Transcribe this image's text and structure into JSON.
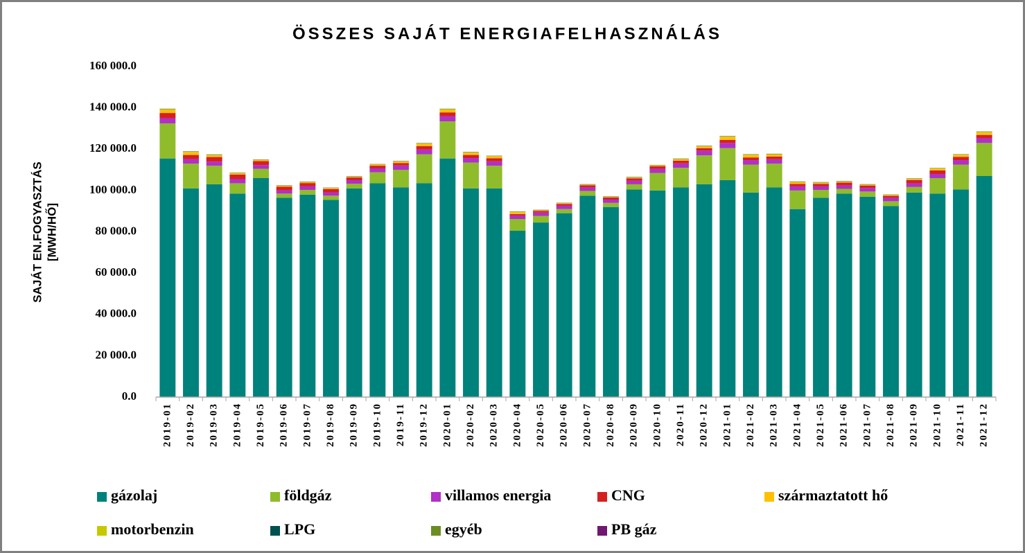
{
  "chart_data": {
    "type": "stacked_bar",
    "title": "ÖSSZES SAJÁT ENERGIAFELHASZNÁLÁS",
    "y_label": [
      "SAJÁT EN.FOGYASZTÁS",
      "[MWH/HŐ]"
    ],
    "categories": [
      "2019-01",
      "2019-02",
      "2019-03",
      "2019-04",
      "2019-05",
      "2019-06",
      "2019-07",
      "2019-08",
      "2019-09",
      "2019-10",
      "2019-11",
      "2019-12",
      "2020-01",
      "2020-02",
      "2020-03",
      "2020-04",
      "2020-05",
      "2020-06",
      "2020-07",
      "2020-08",
      "2020-09",
      "2020-10",
      "2020-11",
      "2020-12",
      "2021-01",
      "2021-02",
      "2021-03",
      "2021-04",
      "2021-05",
      "2021-06",
      "2021-07",
      "2021-08",
      "2021-09",
      "2021-10",
      "2021-11",
      "2021-12"
    ],
    "series": [
      {
        "name": "gázolaj",
        "color": "#00827c",
        "values": [
          115500,
          101000,
          103000,
          98500,
          106000,
          96500,
          98000,
          95500,
          101000,
          103500,
          101500,
          103500,
          115500,
          101000,
          101000,
          80500,
          84500,
          89000,
          97500,
          92000,
          100500,
          100000,
          101500,
          103000,
          105000,
          99000,
          101500,
          91000,
          96500,
          98500,
          97000,
          92500,
          99000,
          98500,
          100500,
          107000
        ]
      },
      {
        "name": "földgáz",
        "color": "#8fbc2b",
        "values": [
          17000,
          12000,
          9000,
          5000,
          4500,
          2000,
          2300,
          2000,
          2300,
          5300,
          8500,
          14000,
          18000,
          12500,
          11000,
          5700,
          3200,
          2000,
          2300,
          2000,
          2500,
          8500,
          9500,
          14000,
          15500,
          13500,
          11500,
          9000,
          3800,
          2300,
          2500,
          2300,
          2700,
          7500,
          12000,
          16000
        ]
      },
      {
        "name": "villamos energia",
        "color": "#b030c8",
        "values": [
          2500,
          2200,
          2000,
          2000,
          1800,
          1600,
          1700,
          1600,
          1700,
          1900,
          2100,
          2300,
          2500,
          2200,
          2100,
          1700,
          1600,
          1600,
          1700,
          1600,
          1700,
          2000,
          2100,
          2300,
          2500,
          2200,
          2100,
          2000,
          1700,
          1700,
          1700,
          1600,
          1800,
          2000,
          2200,
          2300
        ]
      },
      {
        "name": "CNG",
        "color": "#d62020",
        "values": [
          2500,
          2000,
          2200,
          2200,
          1900,
          1700,
          1600,
          1600,
          1300,
          1300,
          1200,
          1700,
          1800,
          1500,
          1500,
          700,
          800,
          900,
          1000,
          1000,
          1200,
          1200,
          1300,
          1200,
          1500,
          1300,
          1300,
          1200,
          1200,
          1300,
          1200,
          1000,
          1600,
          1700,
          1600,
          1600
        ]
      },
      {
        "name": "származtatott hő",
        "color": "#ffc000",
        "values": [
          1500,
          1300,
          800,
          600,
          500,
          400,
          400,
          400,
          300,
          500,
          700,
          1000,
          1300,
          1000,
          900,
          900,
          300,
          300,
          300,
          300,
          300,
          300,
          700,
          800,
          1400,
          1100,
          1000,
          800,
          500,
          400,
          400,
          400,
          500,
          800,
          900,
          1200
        ]
      },
      {
        "name": "motorbenzin",
        "color": "#c8c800",
        "values": [
          400,
          300,
          300,
          200,
          150,
          150,
          150,
          150,
          150,
          150,
          150,
          300,
          300,
          300,
          200,
          200,
          100,
          100,
          100,
          100,
          200,
          200,
          200,
          200,
          300,
          300,
          200,
          200,
          200,
          200,
          100,
          100,
          100,
          200,
          200,
          300
        ]
      },
      {
        "name": "LPG",
        "color": "#005050",
        "values": [
          100,
          100,
          100,
          100,
          100,
          100,
          100,
          100,
          100,
          100,
          100,
          100,
          100,
          100,
          100,
          100,
          100,
          100,
          100,
          100,
          100,
          100,
          100,
          100,
          100,
          100,
          100,
          100,
          100,
          100,
          100,
          100,
          100,
          100,
          100,
          100
        ]
      },
      {
        "name": "egyéb",
        "color": "#6b8e23",
        "values": [
          50,
          50,
          50,
          50,
          50,
          50,
          50,
          50,
          50,
          50,
          50,
          50,
          50,
          50,
          50,
          50,
          50,
          50,
          50,
          50,
          50,
          50,
          50,
          50,
          50,
          50,
          50,
          50,
          50,
          50,
          50,
          50,
          50,
          50,
          50,
          50
        ]
      },
      {
        "name": "PB gáz",
        "color": "#701870",
        "values": [
          30,
          30,
          30,
          30,
          30,
          30,
          30,
          30,
          30,
          30,
          30,
          30,
          30,
          30,
          30,
          30,
          30,
          30,
          30,
          30,
          30,
          30,
          30,
          30,
          30,
          30,
          30,
          30,
          30,
          30,
          30,
          30,
          30,
          30,
          30,
          30
        ]
      }
    ],
    "ylim": [
      0,
      160000
    ],
    "yticks": [
      {
        "value": 0,
        "label": "0.0"
      },
      {
        "value": 20000,
        "label": "20 000.0"
      },
      {
        "value": 40000,
        "label": "40 000.0"
      },
      {
        "value": 60000,
        "label": "60 000.0"
      },
      {
        "value": 80000,
        "label": "80 000.0"
      },
      {
        "value": 100000,
        "label": "100 000.0"
      },
      {
        "value": 120000,
        "label": "120 000.0"
      },
      {
        "value": 140000,
        "label": "140 000.0"
      },
      {
        "value": 160000,
        "label": "160 000.0"
      }
    ],
    "grid": false,
    "legend": "bottom"
  }
}
